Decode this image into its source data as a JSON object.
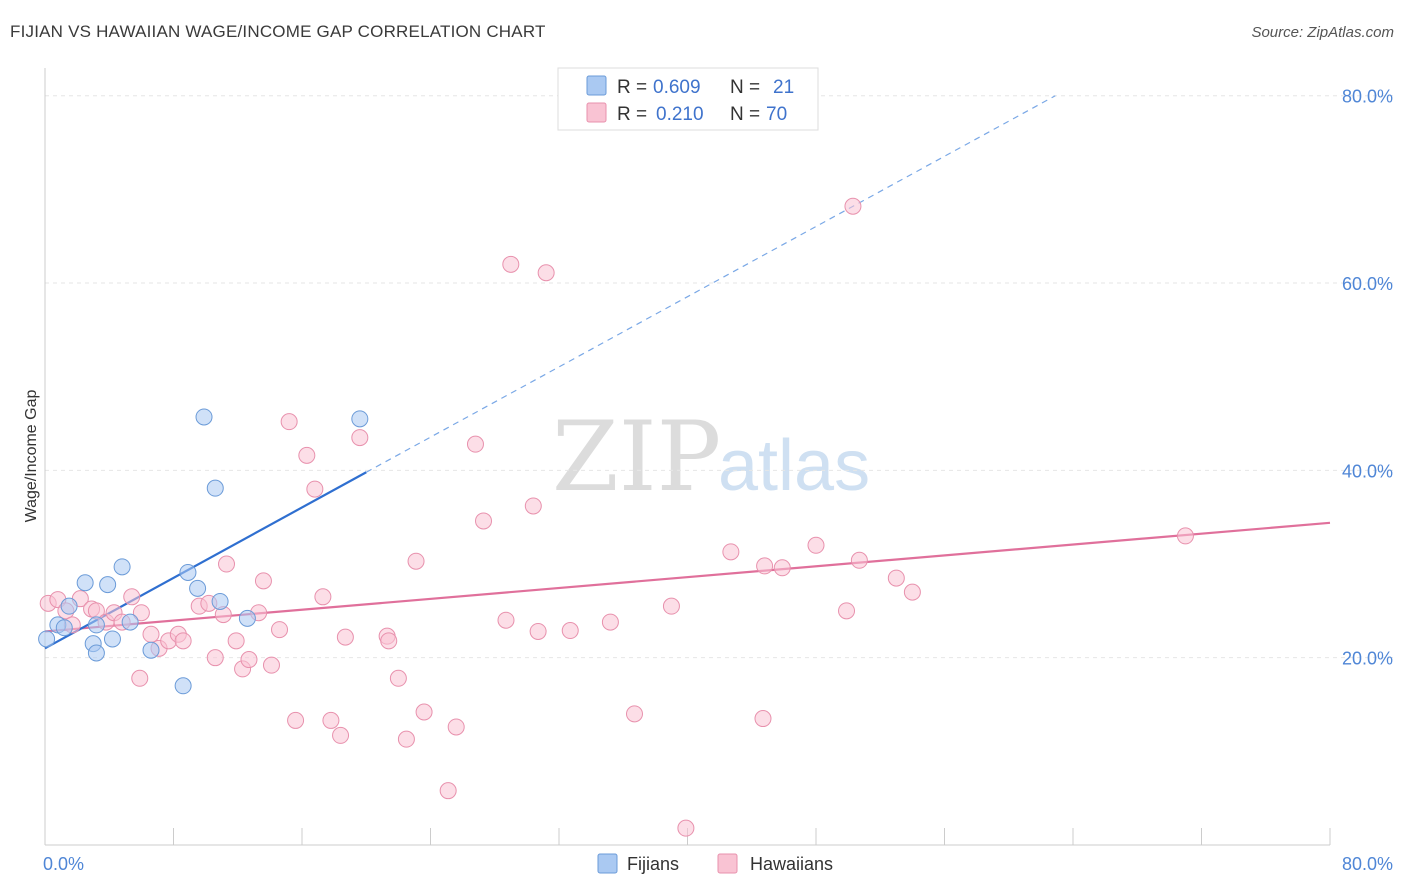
{
  "header": {
    "title": "FIJIAN VS HAWAIIAN WAGE/INCOME GAP CORRELATION CHART",
    "source": "Source: ZipAtlas.com"
  },
  "watermark": {
    "zip": "ZIP",
    "atlas": "atlas"
  },
  "legend_top": {
    "rows": [
      {
        "r_label": "R =",
        "r_value": "0.609",
        "n_label": "N =",
        "n_value": "21",
        "color": "#aac9f2",
        "stroke": "#6b9bd8"
      },
      {
        "r_label": "R =",
        "r_value": "0.210",
        "n_label": "N =",
        "n_value": "70",
        "color": "#f9c3d3",
        "stroke": "#e891ad"
      }
    ]
  },
  "legend_bottom": {
    "items": [
      {
        "label": "Fijians",
        "color": "#aac9f2",
        "stroke": "#6b9bd8"
      },
      {
        "label": "Hawaiians",
        "color": "#f9c3d3",
        "stroke": "#e891ad"
      }
    ]
  },
  "chart_data": {
    "type": "scatter",
    "title": "FIJIAN VS HAWAIIAN WAGE/INCOME GAP CORRELATION CHART",
    "xlabel": "",
    "ylabel": "Wage/Income Gap",
    "xlim": [
      0,
      80
    ],
    "ylim": [
      0,
      82
    ],
    "x_tick_labels": [
      "0.0%",
      "80.0%"
    ],
    "y_ticks": [
      20,
      40,
      60,
      80
    ],
    "y_tick_labels": [
      "20.0%",
      "40.0%",
      "60.0%",
      "80.0%"
    ],
    "grid": true,
    "legend_position": "top-center",
    "series": [
      {
        "name": "Fijians",
        "color": "#aac9f2",
        "stroke": "#6b9bd8",
        "line_color": "#2f6fd0",
        "points": [
          [
            0.1,
            22.0
          ],
          [
            0.8,
            23.5
          ],
          [
            1.2,
            23.2
          ],
          [
            1.5,
            25.5
          ],
          [
            2.5,
            28.0
          ],
          [
            3.2,
            23.5
          ],
          [
            3.0,
            21.5
          ],
          [
            3.2,
            20.5
          ],
          [
            3.9,
            27.8
          ],
          [
            4.2,
            22.0
          ],
          [
            4.8,
            29.7
          ],
          [
            5.3,
            23.8
          ],
          [
            6.6,
            20.8
          ],
          [
            8.6,
            17.0
          ],
          [
            8.9,
            29.1
          ],
          [
            9.5,
            27.4
          ],
          [
            9.9,
            45.7
          ],
          [
            10.6,
            38.1
          ],
          [
            10.9,
            26.0
          ],
          [
            12.6,
            24.2
          ],
          [
            19.6,
            45.5
          ]
        ],
        "trend": {
          "x0": 0,
          "y0": 21.0,
          "x1": 20.0,
          "y1": 39.8,
          "dash_x1": 62.9,
          "dash_y1": 80.0
        }
      },
      {
        "name": "Hawaiians",
        "color": "#f9c3d3",
        "stroke": "#e891ad",
        "line_color": "#e0709b",
        "points": [
          [
            0.2,
            25.8
          ],
          [
            0.8,
            26.2
          ],
          [
            1.3,
            25.0
          ],
          [
            1.7,
            23.5
          ],
          [
            2.2,
            26.3
          ],
          [
            2.9,
            25.2
          ],
          [
            3.2,
            25.0
          ],
          [
            3.8,
            23.8
          ],
          [
            4.3,
            24.8
          ],
          [
            4.8,
            23.8
          ],
          [
            5.4,
            26.5
          ],
          [
            6.0,
            24.8
          ],
          [
            6.6,
            22.5
          ],
          [
            7.1,
            21.0
          ],
          [
            7.7,
            21.8
          ],
          [
            8.3,
            22.5
          ],
          [
            8.6,
            21.8
          ],
          [
            5.9,
            17.8
          ],
          [
            9.6,
            25.5
          ],
          [
            10.2,
            25.8
          ],
          [
            10.6,
            20.0
          ],
          [
            11.1,
            24.6
          ],
          [
            11.3,
            30.0
          ],
          [
            11.9,
            21.8
          ],
          [
            12.3,
            18.8
          ],
          [
            12.7,
            19.8
          ],
          [
            13.3,
            24.8
          ],
          [
            13.6,
            28.2
          ],
          [
            14.1,
            19.2
          ],
          [
            14.6,
            23.0
          ],
          [
            15.2,
            45.2
          ],
          [
            15.6,
            13.3
          ],
          [
            16.3,
            41.6
          ],
          [
            16.8,
            38.0
          ],
          [
            17.3,
            26.5
          ],
          [
            17.8,
            13.3
          ],
          [
            18.4,
            11.7
          ],
          [
            18.7,
            22.2
          ],
          [
            19.6,
            43.5
          ],
          [
            21.3,
            22.3
          ],
          [
            21.4,
            21.8
          ],
          [
            22.0,
            17.8
          ],
          [
            22.5,
            11.3
          ],
          [
            23.1,
            30.3
          ],
          [
            23.6,
            14.2
          ],
          [
            25.1,
            5.8
          ],
          [
            25.6,
            12.6
          ],
          [
            26.8,
            42.8
          ],
          [
            27.3,
            34.6
          ],
          [
            28.7,
            24.0
          ],
          [
            29.0,
            62.0
          ],
          [
            30.4,
            36.2
          ],
          [
            30.7,
            22.8
          ],
          [
            31.2,
            61.1
          ],
          [
            32.7,
            22.9
          ],
          [
            35.2,
            23.8
          ],
          [
            36.7,
            14.0
          ],
          [
            39.0,
            25.5
          ],
          [
            39.9,
            1.8
          ],
          [
            42.7,
            31.3
          ],
          [
            44.7,
            13.5
          ],
          [
            44.8,
            29.8
          ],
          [
            45.9,
            29.6
          ],
          [
            48.0,
            32.0
          ],
          [
            49.9,
            25.0
          ],
          [
            50.3,
            68.2
          ],
          [
            50.7,
            30.4
          ],
          [
            53.0,
            28.5
          ],
          [
            54.0,
            27.0
          ],
          [
            71.0,
            33.0
          ]
        ],
        "trend": {
          "x0": 0,
          "y0": 22.8,
          "x1": 80.0,
          "y1": 34.4
        }
      }
    ]
  }
}
